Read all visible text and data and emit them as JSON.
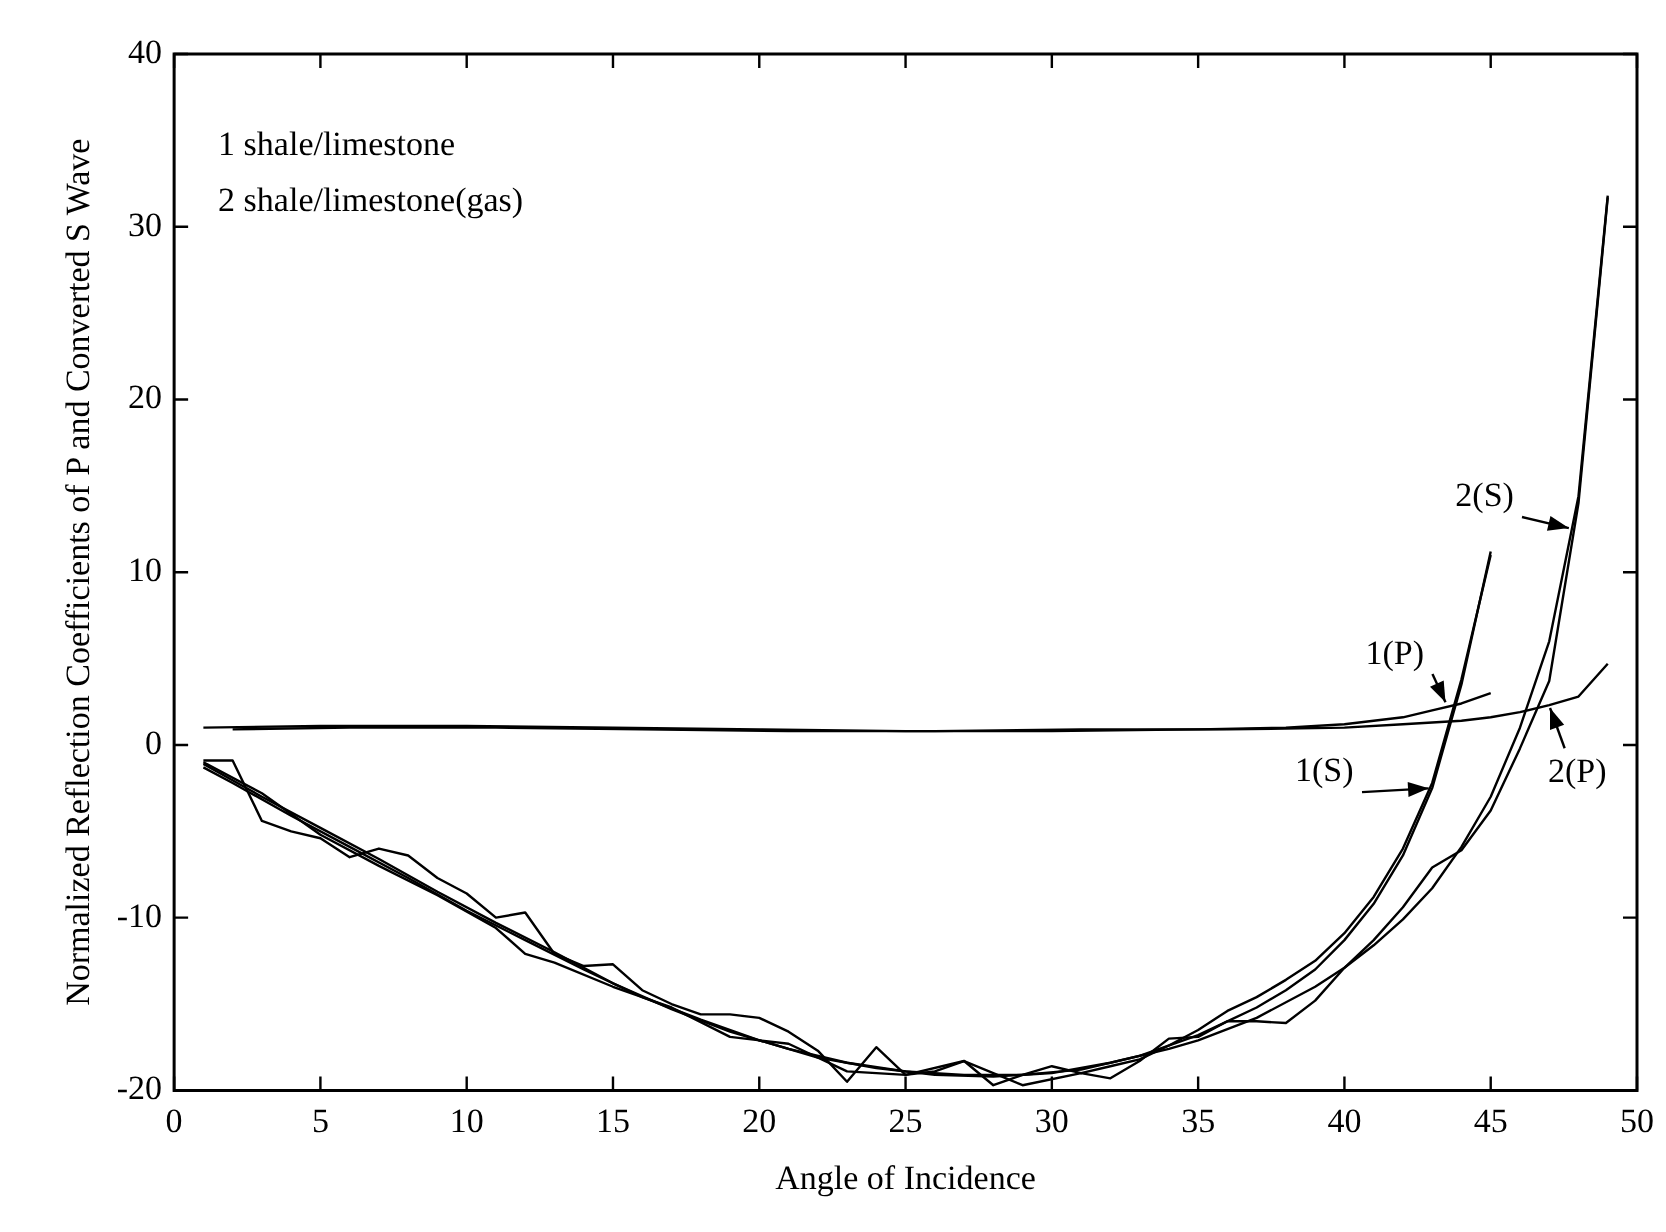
{
  "chart_data": {
    "type": "line",
    "xlabel": "Angle of Incidence",
    "ylabel": "Normalized Reflection Coefficients of P and Converted S Wave",
    "xlim": [
      0,
      50
    ],
    "xticks": [
      0,
      5,
      10,
      15,
      20,
      25,
      30,
      35,
      40,
      45,
      50
    ],
    "ylim": [
      -20,
      40
    ],
    "yticks": [
      -20,
      -10,
      0,
      10,
      20,
      30,
      40
    ],
    "grid": false,
    "legend": false,
    "marker": "none",
    "line_style": "solid",
    "annotations": [
      "1 shale/limestone",
      "2 shale/limestone(gas)",
      {
        "text": "1(P)",
        "x": 43.5,
        "y": 2.2
      },
      {
        "text": "2(S)",
        "x": 47.8,
        "y": 12.5
      },
      {
        "text": "1(S)",
        "x": 43,
        "y": -2.5
      },
      {
        "text": "2(P)",
        "x": 47,
        "y": 2.3
      }
    ],
    "series": [
      {
        "color": "#000000",
        "x": [
          1,
          5,
          10,
          15,
          20,
          25,
          30,
          35,
          38,
          40,
          42,
          43,
          44,
          45
        ],
        "values": [
          1,
          1.1,
          1.1,
          1,
          0.9,
          0.8,
          0.8,
          0.9,
          1,
          1.2,
          1.6,
          2,
          2.4,
          3
        ]
      },
      {
        "color": "#000000",
        "x": [
          2,
          6,
          11,
          16,
          21,
          26,
          31,
          36,
          40,
          42,
          44,
          45,
          46,
          47,
          48,
          49
        ],
        "values": [
          0.9,
          1,
          1,
          0.9,
          0.8,
          0.8,
          0.9,
          0.9,
          1,
          1.2,
          1.4,
          1.6,
          1.9,
          2.3,
          2.8,
          4.7
        ]
      },
      {
        "color": "#000000",
        "x": [
          1,
          3,
          5,
          7,
          9,
          11,
          13,
          15,
          17,
          19,
          21,
          23,
          25,
          27,
          29,
          31,
          33,
          35,
          37,
          38,
          39,
          40,
          41,
          42,
          43,
          44,
          45
        ],
        "values": [
          -1.1,
          -3,
          -4.8,
          -6.6,
          -8.5,
          -10.3,
          -12,
          -13.8,
          -15.3,
          -16.6,
          -17.6,
          -18.4,
          -18.9,
          -19.1,
          -19.1,
          -18.8,
          -18,
          -16.8,
          -15.2,
          -14.2,
          -13,
          -11.3,
          -9.2,
          -6.4,
          -2.5,
          3.5,
          11.2
        ]
      },
      {
        "color": "#000000",
        "x": [
          1,
          2,
          4,
          6,
          8,
          10,
          12,
          14,
          16,
          18,
          20,
          22,
          24,
          26,
          28,
          30,
          32,
          34,
          35,
          37,
          39,
          40,
          41,
          42,
          43,
          44,
          45,
          46,
          47,
          48,
          49
        ],
        "values": [
          -1.3,
          -2.2,
          -4.1,
          -5.9,
          -7.7,
          -9.6,
          -11.3,
          -13,
          -14.6,
          -15.9,
          -17.1,
          -18.1,
          -18.7,
          -19.1,
          -19.2,
          -19,
          -18.4,
          -17.6,
          -17.1,
          -15.8,
          -14,
          -12.9,
          -11.6,
          -10.1,
          -8.3,
          -5.9,
          -3,
          1,
          6,
          14.4,
          31.8
        ]
      },
      {
        "color": "#000000",
        "x": [
          1,
          2,
          3,
          4,
          5,
          6,
          7,
          8,
          9,
          10,
          11,
          12,
          13,
          14,
          15,
          16,
          17,
          18,
          19,
          20,
          21,
          22,
          23,
          24,
          25,
          26,
          27,
          28,
          29,
          30,
          31,
          32,
          33,
          34,
          35,
          36,
          37,
          38,
          39,
          40,
          41,
          42,
          43,
          44,
          45
        ],
        "values": [
          -0.9,
          -0.9,
          -4.4,
          -5,
          -5.4,
          -6.5,
          -6,
          -6.4,
          -7.7,
          -8.6,
          -10,
          -9.7,
          -12.1,
          -12.8,
          -12.7,
          -14.2,
          -15,
          -15.6,
          -15.6,
          -15.8,
          -16.6,
          -17.7,
          -19.5,
          -17.5,
          -19.1,
          -18.9,
          -18.3,
          -19.7,
          -19.1,
          -18.6,
          -19,
          -18.6,
          -18.2,
          -17.4,
          -16.5,
          -15.4,
          -14.6,
          -13.6,
          -12.5,
          -10.9,
          -8.8,
          -6,
          -2.2,
          3.8,
          11
        ]
      },
      {
        "color": "#000000",
        "x": [
          1,
          3,
          5,
          7,
          9,
          11,
          12,
          13,
          15,
          17,
          19,
          21,
          23,
          25,
          27,
          29,
          31,
          32,
          33,
          34,
          35,
          36,
          37,
          38,
          39,
          40,
          41,
          42,
          43,
          44,
          45,
          46,
          47,
          48,
          49
        ],
        "values": [
          -1,
          -2.8,
          -5.2,
          -7,
          -8.7,
          -10.6,
          -12.1,
          -12.6,
          -14,
          -15.2,
          -16.9,
          -17.3,
          -18.9,
          -19.1,
          -18.3,
          -19.7,
          -19,
          -19.3,
          -18.3,
          -17,
          -16.9,
          -16,
          -16,
          -16.1,
          -14.8,
          -12.9,
          -11.3,
          -9.4,
          -7.1,
          -6.1,
          -3.8,
          -0.2,
          3.7,
          14,
          31.7
        ]
      }
    ]
  }
}
